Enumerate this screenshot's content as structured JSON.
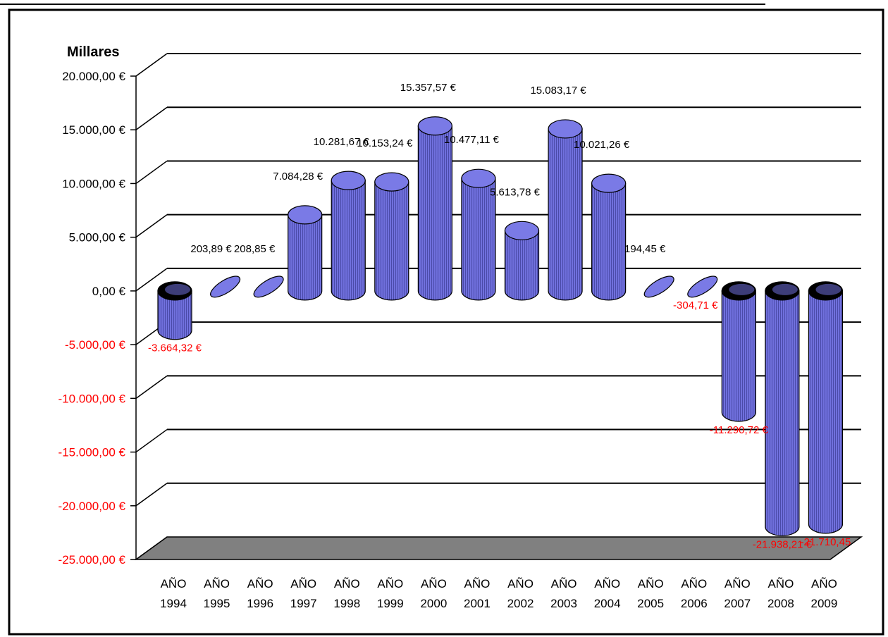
{
  "chart_data": {
    "type": "bar",
    "style": "3d-cylinder",
    "title": "",
    "xlabel": "",
    "ylabel": "",
    "y_unit_label": "Millares",
    "ylim": [
      -25000,
      20000
    ],
    "y_ticks": [
      20000,
      15000,
      10000,
      5000,
      0,
      -5000,
      -10000,
      -15000,
      -20000,
      -25000
    ],
    "y_tick_labels": [
      "20.000,00 €",
      "15.000,00 €",
      "10.000,00 €",
      "5.000,00 €",
      "0,00 €",
      "-5.000,00 €",
      "-10.000,00 €",
      "-15.000,00 €",
      "-20.000,00 €",
      "-25.000,00 €"
    ],
    "grid": true,
    "legend": "none",
    "categories": [
      [
        "AÑO",
        "1994"
      ],
      [
        "AÑO",
        "1995"
      ],
      [
        "AÑO",
        "1996"
      ],
      [
        "AÑO",
        "1997"
      ],
      [
        "AÑO",
        "1998"
      ],
      [
        "AÑO",
        "1999"
      ],
      [
        "AÑO",
        "2000"
      ],
      [
        "AÑO",
        "2001"
      ],
      [
        "AÑO",
        "2002"
      ],
      [
        "AÑO",
        "2003"
      ],
      [
        "AÑO",
        "2004"
      ],
      [
        "AÑO",
        "2005"
      ],
      [
        "AÑO",
        "2006"
      ],
      [
        "AÑO",
        "2007"
      ],
      [
        "AÑO",
        "2008"
      ],
      [
        "AÑO",
        "2009"
      ]
    ],
    "values": [
      -3664.32,
      203.89,
      208.85,
      7084.28,
      10281.67,
      10153.24,
      15357.57,
      10477.11,
      5613.78,
      15083.17,
      10021.26,
      194.45,
      -304.71,
      -11290.72,
      -21938.21,
      -21710.45
    ],
    "data_labels": [
      "-3.664,32 €",
      "203,89 €",
      "208,85 €",
      "7.084,28 €",
      "10.281,67 €",
      "10.153,24 €",
      "15.357,57 €",
      "10.477,11 €",
      "5.613,78 €",
      "15.083,17 €",
      "10.021,26 €",
      "194,45 €",
      "-304,71 €",
      "-11.290,72 €",
      "-21.938,21 €",
      "-21.710,45"
    ],
    "colors": {
      "bar_fill": "#7070dd",
      "bar_top": "#7a7ae6",
      "bar_stripe": "#4a4aa8",
      "floor": "#808080",
      "negative_text": "#ff0000",
      "positive_text": "#000000",
      "grid": "#000000"
    }
  }
}
